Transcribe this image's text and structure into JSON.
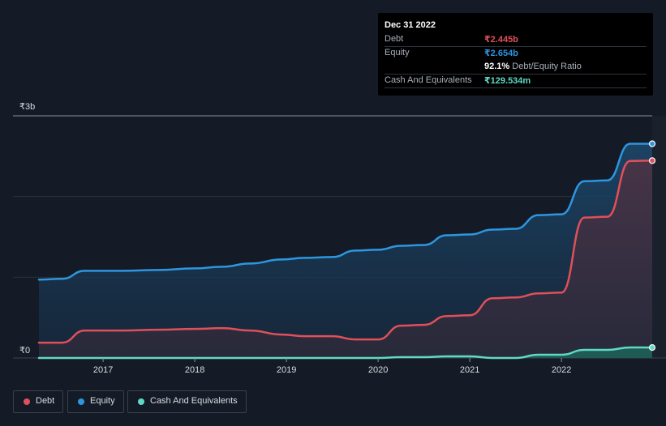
{
  "chart_data": {
    "type": "area",
    "currency": "₹",
    "y_ticks": [
      {
        "value": 0,
        "label": "₹0"
      },
      {
        "value": 3.0,
        "label": "₹3b"
      }
    ],
    "ylim": [
      0,
      3.0
    ],
    "xlim": [
      2016.3,
      2022.99
    ],
    "x_ticks": [
      "2017",
      "2018",
      "2019",
      "2020",
      "2021",
      "2022"
    ],
    "grid": true,
    "legend_position": "bottom-left",
    "series": [
      {
        "name": "Debt",
        "color": "#e0505a",
        "points": [
          [
            2016.3,
            0.19
          ],
          [
            2016.55,
            0.19
          ],
          [
            2016.8,
            0.34
          ],
          [
            2017.2,
            0.34
          ],
          [
            2017.6,
            0.35
          ],
          [
            2018.0,
            0.36
          ],
          [
            2018.3,
            0.37
          ],
          [
            2018.6,
            0.34
          ],
          [
            2018.95,
            0.29
          ],
          [
            2019.2,
            0.27
          ],
          [
            2019.5,
            0.27
          ],
          [
            2019.75,
            0.23
          ],
          [
            2020.0,
            0.23
          ],
          [
            2020.25,
            0.4
          ],
          [
            2020.5,
            0.41
          ],
          [
            2020.75,
            0.52
          ],
          [
            2021.0,
            0.53
          ],
          [
            2021.25,
            0.74
          ],
          [
            2021.5,
            0.75
          ],
          [
            2021.75,
            0.8
          ],
          [
            2022.0,
            0.81
          ],
          [
            2022.25,
            1.74
          ],
          [
            2022.5,
            1.75
          ],
          [
            2022.75,
            2.44
          ],
          [
            2022.99,
            2.445
          ]
        ]
      },
      {
        "name": "Equity",
        "color": "#2d96e0",
        "points": [
          [
            2016.3,
            0.97
          ],
          [
            2016.55,
            0.98
          ],
          [
            2016.8,
            1.08
          ],
          [
            2017.2,
            1.08
          ],
          [
            2017.6,
            1.09
          ],
          [
            2018.0,
            1.11
          ],
          [
            2018.3,
            1.13
          ],
          [
            2018.6,
            1.17
          ],
          [
            2018.95,
            1.22
          ],
          [
            2019.2,
            1.24
          ],
          [
            2019.5,
            1.25
          ],
          [
            2019.75,
            1.33
          ],
          [
            2020.0,
            1.34
          ],
          [
            2020.25,
            1.39
          ],
          [
            2020.5,
            1.4
          ],
          [
            2020.75,
            1.52
          ],
          [
            2021.0,
            1.53
          ],
          [
            2021.25,
            1.59
          ],
          [
            2021.5,
            1.6
          ],
          [
            2021.75,
            1.77
          ],
          [
            2022.0,
            1.78
          ],
          [
            2022.25,
            2.19
          ],
          [
            2022.5,
            2.2
          ],
          [
            2022.75,
            2.654
          ],
          [
            2022.99,
            2.654
          ]
        ]
      },
      {
        "name": "Cash And Equivalents",
        "color": "#5fd9c6",
        "points": [
          [
            2016.3,
            0.0
          ],
          [
            2016.8,
            0.0
          ],
          [
            2017.6,
            0.0
          ],
          [
            2018.6,
            0.0
          ],
          [
            2019.5,
            0.0
          ],
          [
            2020.0,
            0.0
          ],
          [
            2020.25,
            0.01
          ],
          [
            2020.5,
            0.01
          ],
          [
            2020.75,
            0.02
          ],
          [
            2021.0,
            0.02
          ],
          [
            2021.25,
            0.0
          ],
          [
            2021.5,
            0.0
          ],
          [
            2021.75,
            0.04
          ],
          [
            2022.0,
            0.04
          ],
          [
            2022.25,
            0.1
          ],
          [
            2022.5,
            0.1
          ],
          [
            2022.75,
            0.13
          ],
          [
            2022.99,
            0.1295
          ]
        ]
      }
    ]
  },
  "tooltip": {
    "date": "Dec 31 2022",
    "rows": [
      {
        "label": "Debt",
        "value": "₹2.445b",
        "color": "#e0505a"
      },
      {
        "label": "Equity",
        "value": "₹2.654b",
        "color": "#2d96e0"
      }
    ],
    "ratio_value": "92.1%",
    "ratio_label": "Debt/Equity Ratio",
    "cash": {
      "label": "Cash And Equivalents",
      "value": "₹129.534m",
      "color": "#5fd9c6"
    }
  },
  "legend": [
    {
      "label": "Debt",
      "color": "#e0505a"
    },
    {
      "label": "Equity",
      "color": "#2d96e0"
    },
    {
      "label": "Cash And Equivalents",
      "color": "#5fd9c6"
    }
  ]
}
